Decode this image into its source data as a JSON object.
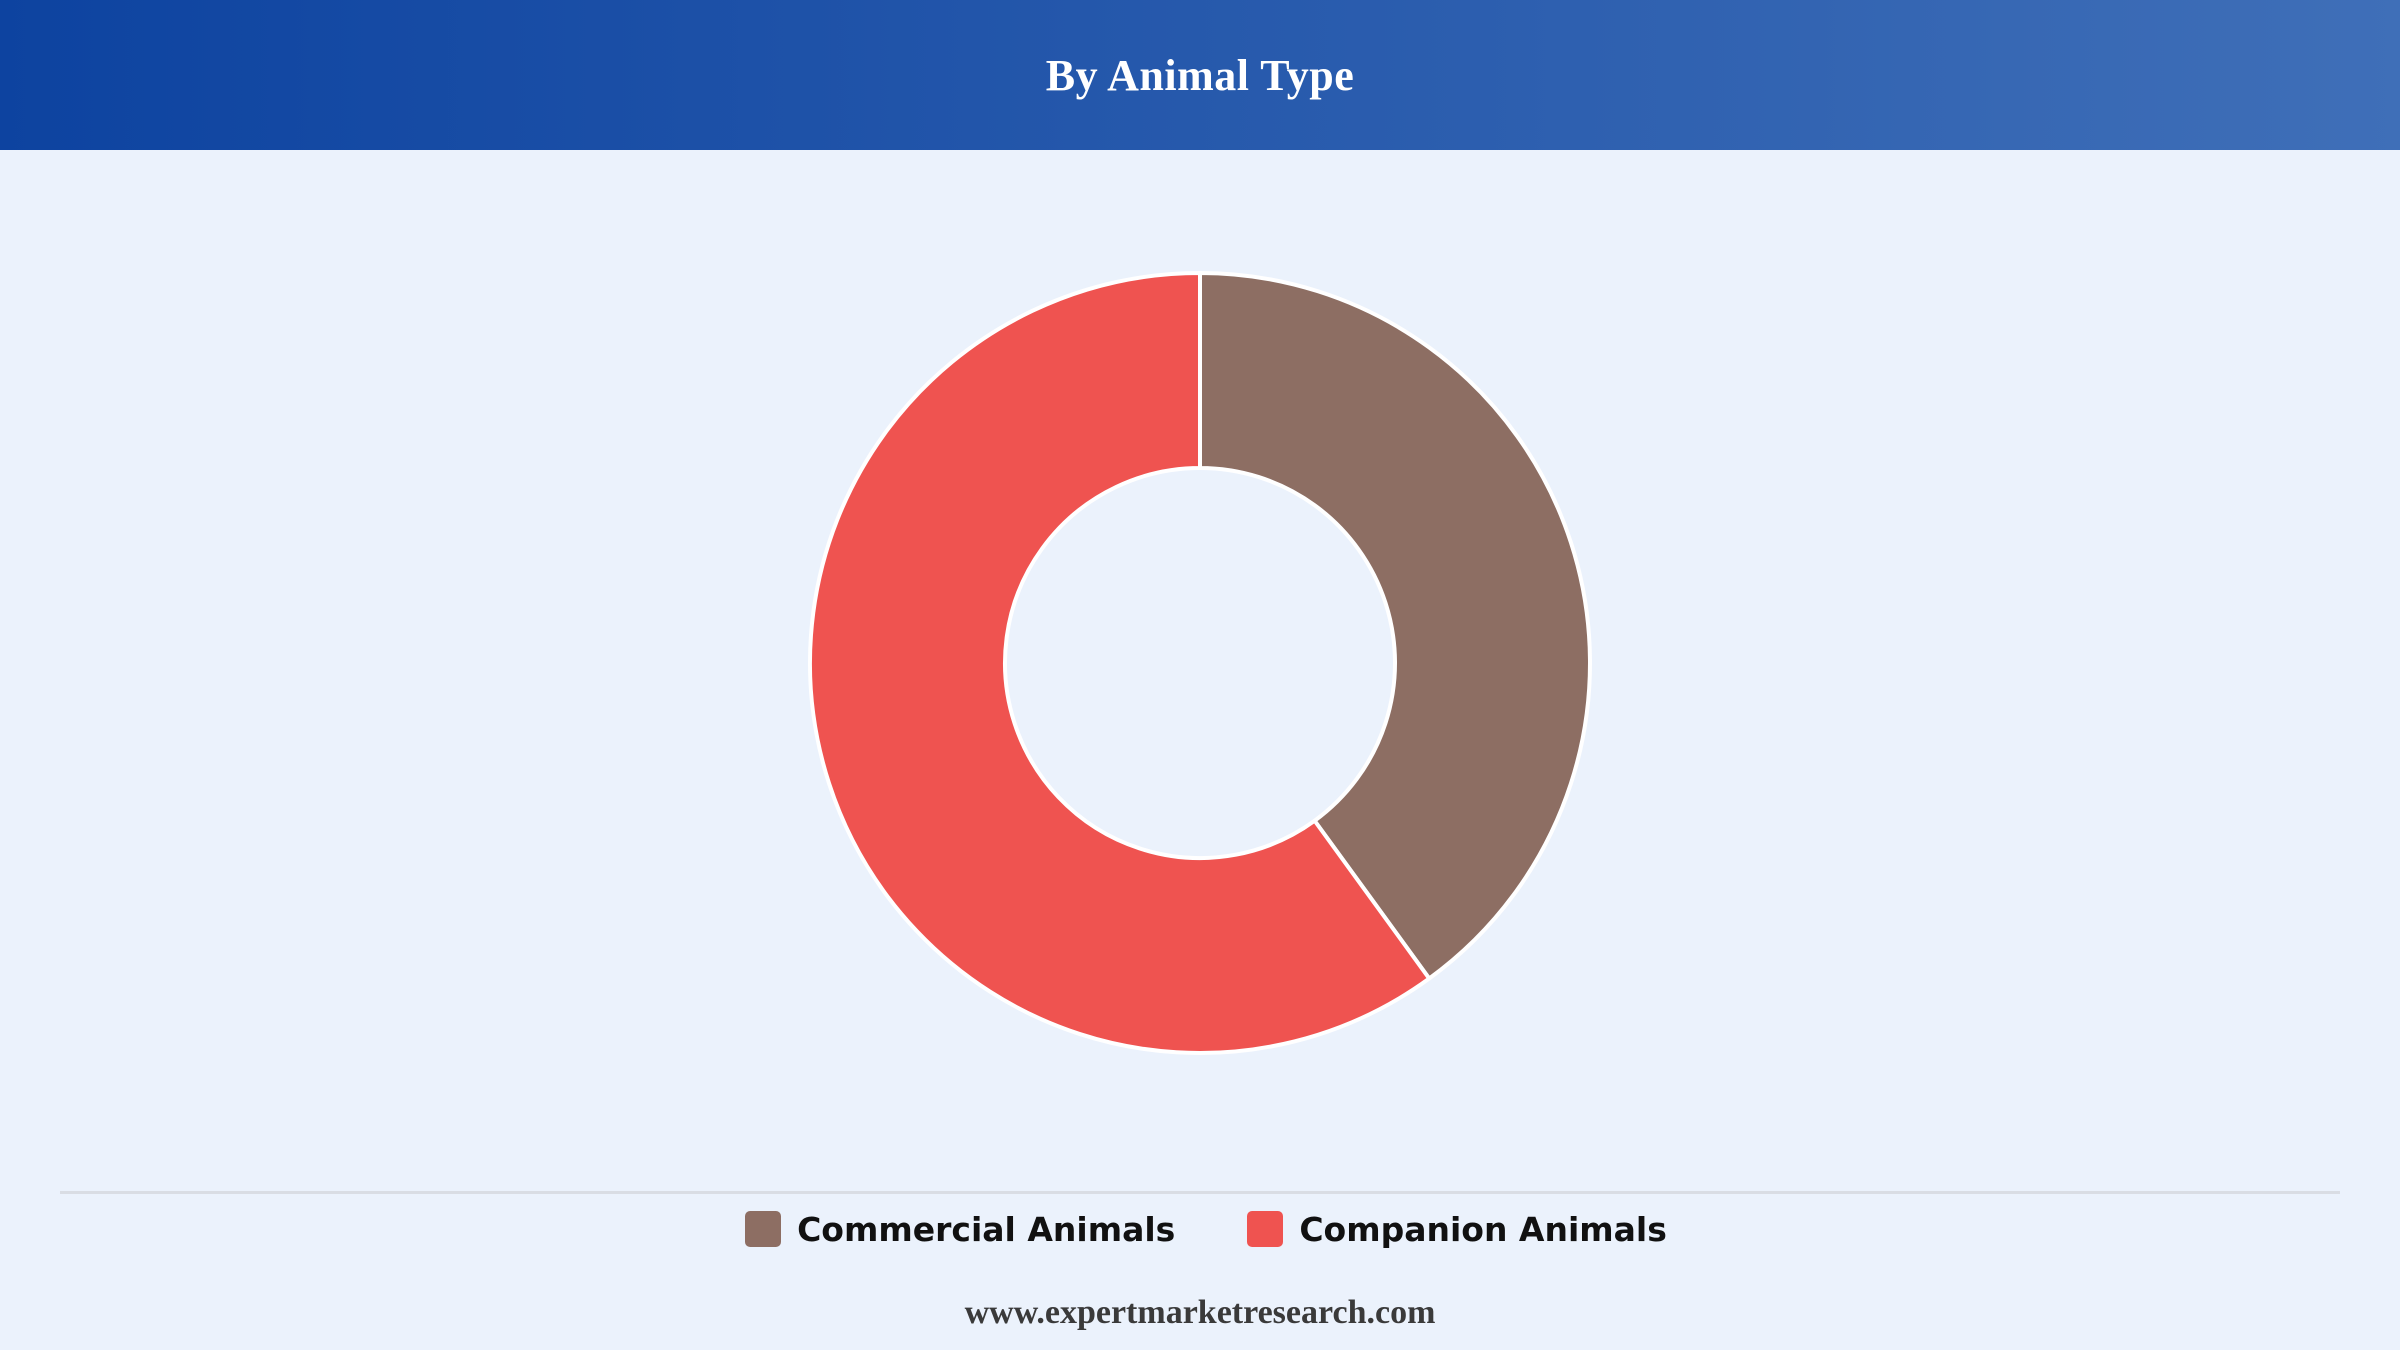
{
  "header": {
    "title": "By Animal Type"
  },
  "chart_data": {
    "type": "pie",
    "variant": "donut",
    "title": "By Animal Type",
    "categories": [
      "Commercial Animals",
      "Companion Animals"
    ],
    "values": [
      40,
      60
    ],
    "unit": "%",
    "colors": [
      "#8d6e63",
      "#ef5350"
    ],
    "start_angle_deg": 0,
    "direction": "clockwise",
    "legend_position": "bottom-center",
    "data_labels": false
  },
  "legend": {
    "items": [
      {
        "label": "Commercial Animals",
        "color": "#8d6e63"
      },
      {
        "label": "Companion Animals",
        "color": "#ef5350"
      }
    ]
  },
  "footer": {
    "source": "www.expertmarketresearch.com"
  }
}
